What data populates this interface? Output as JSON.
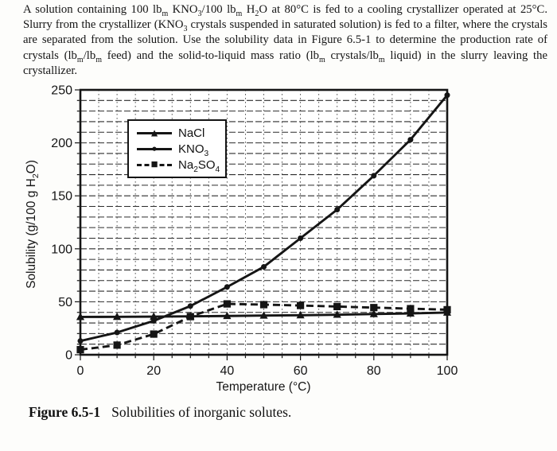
{
  "problem": {
    "text": "A solution containing 100 lb_m KNO_3/100 lb_m H_2O at 80°C is fed to a cooling crystallizer operated at 25°C. Slurry from the crystallizer (KNO_3 crystals suspended in saturated solution) is fed to a filter, where the crystals are separated from the solution. Use the solubility data in Figure 6.5-1 to determine the production rate of crystals (lb_m/lb_m feed) and the solid-to-liquid mass ratio (lb_m crystals/lb_m liquid) in the slurry leaving the crystallizer."
  },
  "figure": {
    "caption_label": "Figure 6.5-1",
    "caption_text": "Solubilities of inorganic solutes."
  },
  "chart_data": {
    "type": "line",
    "title": "",
    "xlabel": "Temperature (°C)",
    "ylabel": "Solubility (g/100 g H_2O)",
    "x": [
      0,
      10,
      20,
      30,
      40,
      50,
      60,
      70,
      80,
      90,
      100
    ],
    "series": [
      {
        "name": "NaCl",
        "marker": "triangle",
        "line": "solid",
        "values": [
          35.7,
          35.8,
          36.0,
          36.3,
          36.6,
          37.0,
          37.3,
          37.8,
          38.4,
          39.0,
          39.8
        ]
      },
      {
        "name": "KNO_3",
        "marker": "circle",
        "line": "solid",
        "values": [
          13,
          21,
          32,
          46,
          64,
          83,
          110,
          137,
          169,
          203,
          245
        ]
      },
      {
        "name": "Na_2SO_4",
        "marker": "square",
        "line": "dashed",
        "values": [
          4.8,
          9.1,
          19.5,
          36,
          48,
          47.3,
          46.5,
          45.5,
          44.5,
          43.5,
          42.5
        ]
      }
    ],
    "xlim": [
      0,
      100
    ],
    "ylim": [
      0,
      250
    ],
    "xticks": [
      0,
      20,
      40,
      60,
      80,
      100
    ],
    "yticks": [
      0,
      50,
      100,
      150,
      200,
      250
    ],
    "grid": {
      "x_minor_step": 5,
      "y_minor_step": 10,
      "on": true
    },
    "legend_position": "upper-left",
    "ink_color": "#151515",
    "background": "#ffffff"
  }
}
